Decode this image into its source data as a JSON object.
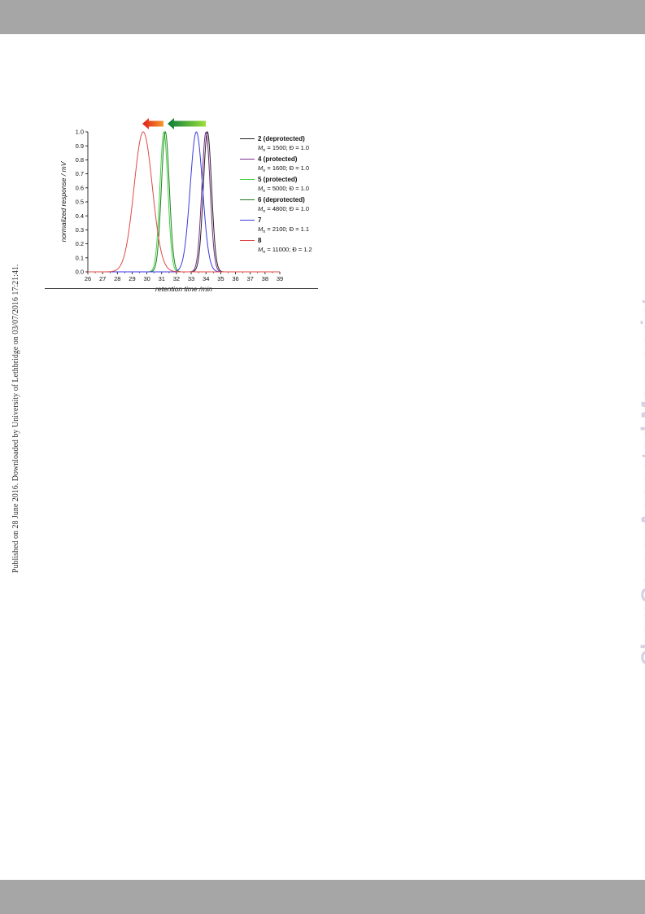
{
  "side_note": "Published on 28 June 2016. Downloaded by University of Lethbridge on 03/07/2016 17:21:41.",
  "watermark": "ChemComm Accepted Manuscript",
  "chart_data": {
    "type": "line",
    "title": "",
    "xlabel": "retention time /min",
    "ylabel": "normalized response / mV",
    "xlim": [
      26,
      39
    ],
    "ylim": [
      0,
      1.0
    ],
    "xticks": [
      "26",
      "27",
      "28",
      "29",
      "30",
      "31",
      "32",
      "33",
      "34",
      "35",
      "36",
      "37",
      "38",
      "39"
    ],
    "yticks": [
      "0.0",
      "0.1",
      "0.2",
      "0.3",
      "0.4",
      "0.5",
      "0.6",
      "0.7",
      "0.8",
      "0.9",
      "1.0"
    ],
    "grid": false,
    "legend_position": "right",
    "arrows": [
      {
        "direction": "left",
        "color_from": "#e11b1b",
        "color_to": "#f59a2a"
      },
      {
        "direction": "left",
        "color_from": "#0a7a3a",
        "color_to": "#9be03a"
      }
    ],
    "series": [
      {
        "name": "2 (deprotected)",
        "sub_pre": "M",
        "sub": "n",
        "sub_post": " = 1500; Đ = 1.0",
        "color": "#222222",
        "peak": 34.1,
        "width": 0.28
      },
      {
        "name": "4 (protected)",
        "sub_pre": "M",
        "sub": "n",
        "sub_post": " = 1600; Đ = 1.0",
        "color": "#7a2a8a",
        "peak": 34.0,
        "width": 0.28
      },
      {
        "name": "5 (protected)",
        "sub_pre": "M",
        "sub": "n",
        "sub_post": " = 5000; Đ = 1.0",
        "color": "#3ed23e",
        "peak": 31.15,
        "width": 0.27
      },
      {
        "name": "6 (deprotected)",
        "sub_pre": "M",
        "sub": "n",
        "sub_post": " = 4800; Đ = 1.0",
        "color": "#1e7a1e",
        "peak": 31.25,
        "width": 0.27
      },
      {
        "name": "7",
        "sub_pre": "M",
        "sub": "n",
        "sub_post": " = 2100; Đ = 1.1",
        "color": "#3a3ae0",
        "peak": 33.35,
        "width": 0.42
      },
      {
        "name": "8",
        "sub_pre": "M",
        "sub": "n",
        "sub_post": " = 11000; Đ = 1.2",
        "color": "#e04848",
        "peak": 29.75,
        "width": 0.62
      }
    ]
  }
}
